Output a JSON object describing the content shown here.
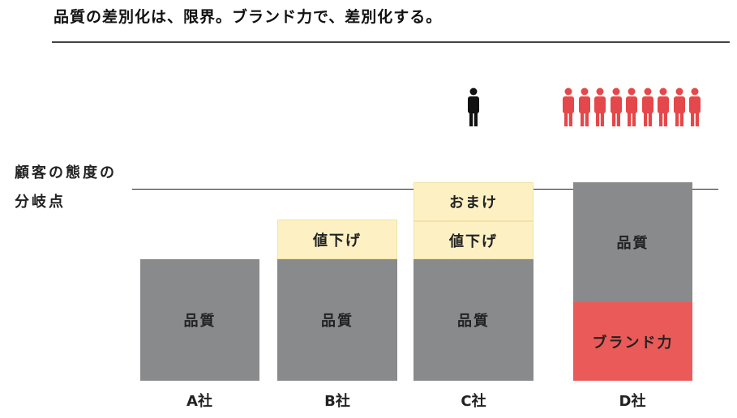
{
  "title": "品質の差別化は、限界。ブランド力で、差別化する。",
  "threshold": {
    "line1": "顧客の態度の",
    "line2": "分岐点"
  },
  "companies": {
    "a": {
      "label": "A社",
      "quality": "品質"
    },
    "b": {
      "label": "B社",
      "quality": "品質",
      "discount": "値下げ"
    },
    "c": {
      "label": "C社",
      "quality": "品質",
      "discount": "値下げ",
      "bonus": "おまけ"
    },
    "d": {
      "label": "D社",
      "quality": "品質",
      "brand": "ブランド力"
    }
  },
  "colors": {
    "quality": "#898a8c",
    "cream": "#fdf1c4",
    "brand": "#ea5a58",
    "person_black": "#111111",
    "person_red": "#e5484a"
  },
  "icons": {
    "c_customers": "person-icon",
    "d_customers": "person-icon"
  }
}
